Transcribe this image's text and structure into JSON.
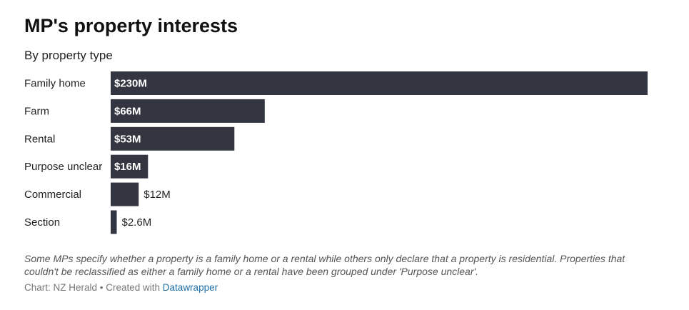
{
  "chart_data": {
    "type": "bar",
    "orientation": "horizontal",
    "title": "MP's property interests",
    "subtitle": "By property type",
    "categories": [
      "Family home",
      "Farm",
      "Rental",
      "Purpose unclear",
      "Commercial",
      "Section"
    ],
    "values": [
      230,
      66,
      53,
      16,
      12,
      2.6
    ],
    "value_labels": [
      "$230M",
      "$66M",
      "$53M",
      "$16M",
      "$12M",
      "$2.6M"
    ],
    "unit": "$M",
    "xlim": [
      0,
      230
    ],
    "bar_color": "#333640",
    "grid": false,
    "legend": "none"
  },
  "footer": {
    "note": "Some MPs specify whether a property is a family home or a rental while others only declare that a property is residential. Properties that couldn't be reclassified as either a family home or a rental have been grouped under 'Purpose unclear'.",
    "credit_prefix": "Chart: NZ Herald • Created with ",
    "credit_link": "Datawrapper"
  },
  "colors": {
    "bar": "#333640",
    "label_inside": "#ffffff",
    "label_outside": "#222222",
    "link": "#1b6fa8"
  }
}
